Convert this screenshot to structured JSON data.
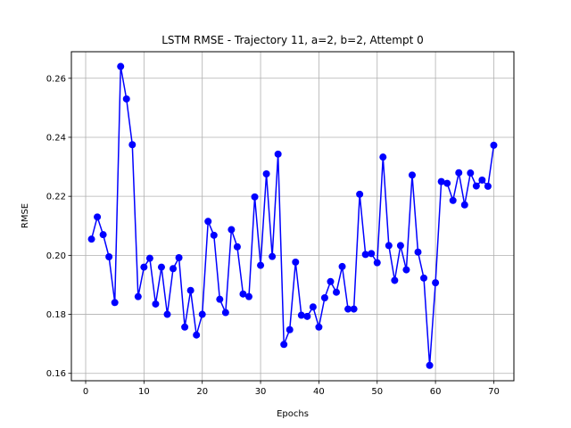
{
  "chart_data": {
    "type": "line",
    "title": "LSTM RMSE - Trajectory 11, a=2, b=2, Attempt 0",
    "xlabel": "Epochs",
    "ylabel": "RMSE",
    "xlim": [
      -2.45,
      73.45
    ],
    "ylim": [
      0.1575,
      0.269
    ],
    "xticks": [
      0,
      10,
      20,
      30,
      40,
      50,
      60,
      70
    ],
    "yticks": [
      0.16,
      0.18,
      0.2,
      0.22,
      0.24,
      0.26
    ],
    "ytick_labels": [
      "0.16",
      "0.18",
      "0.20",
      "0.22",
      "0.24",
      "0.26"
    ],
    "grid": true,
    "legend": "none",
    "colors": {
      "series": "#0000ff",
      "grid": "#b0b0b0"
    },
    "series": [
      {
        "marker": "circle",
        "x": [
          1,
          2,
          3,
          4,
          5,
          6,
          7,
          8,
          9,
          10,
          11,
          12,
          13,
          14,
          15,
          16,
          17,
          18,
          19,
          20,
          21,
          22,
          23,
          24,
          25,
          26,
          27,
          28,
          29,
          30,
          31,
          32,
          33,
          34,
          35,
          36,
          37,
          38,
          39,
          40,
          41,
          42,
          43,
          44,
          45,
          46,
          47,
          48,
          49,
          50,
          51,
          52,
          53,
          54,
          55,
          56,
          57,
          58,
          59,
          60,
          61,
          62,
          63,
          64,
          65,
          66,
          67,
          68,
          69,
          70
        ],
        "values": [
          0.2055,
          0.213,
          0.207,
          0.1995,
          0.184,
          0.264,
          0.253,
          0.2375,
          0.186,
          0.196,
          0.199,
          0.1835,
          0.196,
          0.18,
          0.1955,
          0.1992,
          0.1757,
          0.1881,
          0.173,
          0.18,
          0.2115,
          0.2068,
          0.1851,
          0.1806,
          0.2087,
          0.2029,
          0.1869,
          0.186,
          0.2198,
          0.1966,
          0.2276,
          0.1996,
          0.2343,
          0.1698,
          0.1748,
          0.1977,
          0.1797,
          0.1793,
          0.1825,
          0.1757,
          0.1856,
          0.1911,
          0.1875,
          0.1962,
          0.1818,
          0.1818,
          0.2207,
          0.2003,
          0.2006,
          0.1975,
          0.2333,
          0.2033,
          0.1915,
          0.2033,
          0.1951,
          0.2272,
          0.2011,
          0.1923,
          0.1627,
          0.1907,
          0.225,
          0.2244,
          0.2186,
          0.228,
          0.2171,
          0.2279,
          0.2235,
          0.2255,
          0.2234,
          0.2373
        ]
      }
    ]
  }
}
